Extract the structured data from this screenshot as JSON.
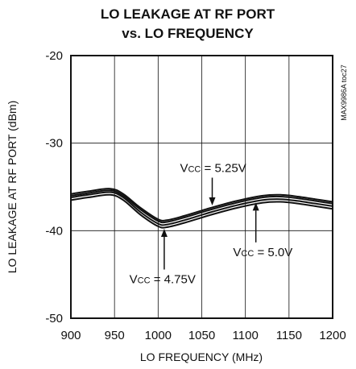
{
  "chart_data": {
    "type": "line",
    "title_line1": "LO LEAKAGE AT RF PORT",
    "title_line2": "vs. LO FREQUENCY",
    "xlabel": "LO FREQUENCY (MHz)",
    "ylabel": "LO LEAKAGE AT RF PORT (dBm)",
    "xlim": [
      900,
      1200
    ],
    "ylim": [
      -50,
      -20
    ],
    "xticks": [
      900,
      950,
      1000,
      1050,
      1100,
      1150,
      1200
    ],
    "yticks": [
      -50,
      -40,
      -30,
      -20
    ],
    "grid": true,
    "chart_code": "MAX9986A toc27",
    "x": [
      900,
      920,
      945,
      960,
      980,
      1000,
      1010,
      1030,
      1060,
      1090,
      1120,
      1140,
      1160,
      1180,
      1200
    ],
    "series": [
      {
        "values": [
          -35.8,
          -35.5,
          -35.2,
          -35.8,
          -37.4,
          -38.7,
          -38.8,
          -38.3,
          -37.4,
          -36.6,
          -36.0,
          -35.9,
          -36.1,
          -36.4,
          -36.7
        ]
      },
      {
        "values": [
          -36.0,
          -35.7,
          -35.4,
          -36.0,
          -37.6,
          -38.9,
          -39.0,
          -38.5,
          -37.6,
          -36.8,
          -36.2,
          -36.1,
          -36.3,
          -36.6,
          -36.9
        ]
      },
      {
        "values": [
          -36.2,
          -35.9,
          -35.6,
          -36.2,
          -37.9,
          -39.2,
          -39.3,
          -38.8,
          -37.9,
          -37.1,
          -36.5,
          -36.4,
          -36.6,
          -36.9,
          -37.2
        ]
      },
      {
        "values": [
          -36.5,
          -36.2,
          -35.9,
          -36.5,
          -38.2,
          -39.5,
          -39.6,
          -39.1,
          -38.2,
          -37.4,
          -36.8,
          -36.7,
          -36.9,
          -37.2,
          -37.5
        ]
      }
    ],
    "annotations": [
      {
        "main": "V",
        "sub": "CC",
        "rest": " = 5.25V",
        "at_x": 1062,
        "at_y": -37.3,
        "text_x": 1063,
        "text_y": -33.3
      },
      {
        "main": "V",
        "sub": "CC",
        "rest": " = 5.0V",
        "at_x": 1112,
        "at_y": -36.6,
        "text_x": 1120,
        "text_y": -42.9
      },
      {
        "main": "V",
        "sub": "CC",
        "rest": " = 4.75V",
        "at_x": 1007,
        "at_y": -39.6,
        "text_x": 1005,
        "text_y": -46.0
      }
    ]
  }
}
